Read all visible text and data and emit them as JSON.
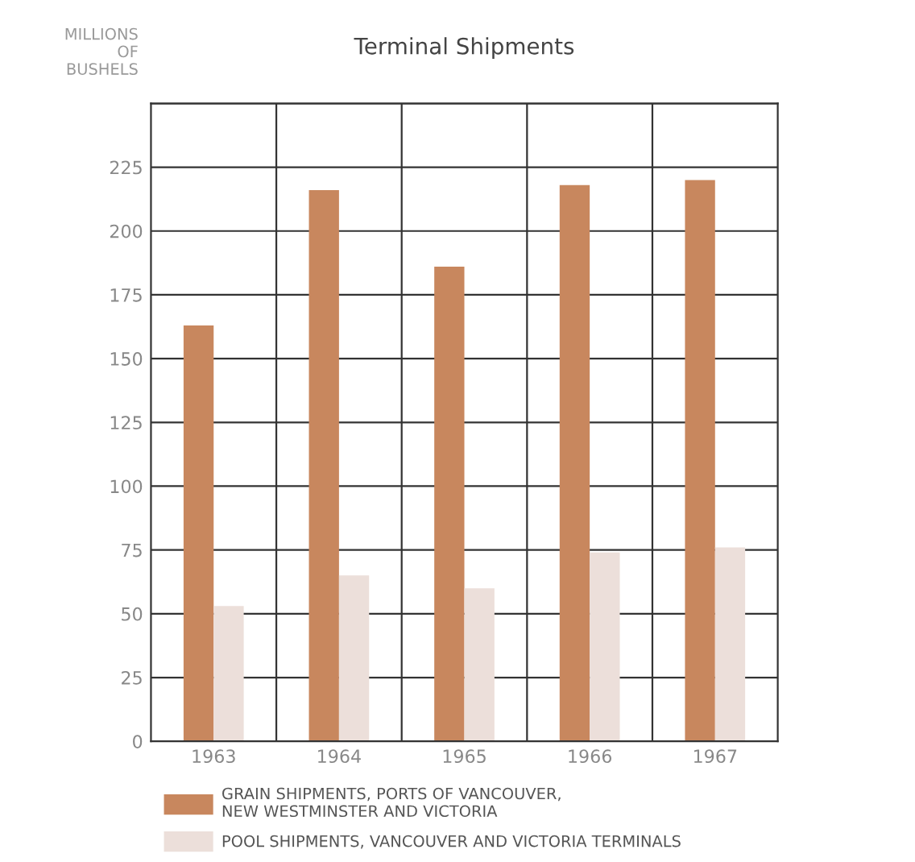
{
  "chart_data": {
    "type": "bar",
    "title": "Terminal Shipments",
    "ylabel": "MILLIONS\nOF\nBUSHELS",
    "categories": [
      "1963",
      "1964",
      "1965",
      "1966",
      "1967"
    ],
    "series": [
      {
        "name": "GRAIN SHIPMENTS, PORTS OF VANCOUVER,\nNEW WESTMINSTER AND VICTORIA",
        "color": "#c8875e",
        "values": [
          163,
          216,
          186,
          218,
          220
        ]
      },
      {
        "name": "POOL SHIPMENTS, VANCOUVER AND VICTORIA TERMINALS",
        "color": "#ecdfda",
        "values": [
          53,
          65,
          60,
          74,
          76
        ]
      }
    ],
    "ylim": [
      0,
      250
    ],
    "yticks": [
      0,
      25,
      50,
      75,
      100,
      125,
      150,
      175,
      200,
      225,
      {
        "value": 250,
        "label": null
      }
    ],
    "grid": true,
    "legend": "bottom"
  }
}
